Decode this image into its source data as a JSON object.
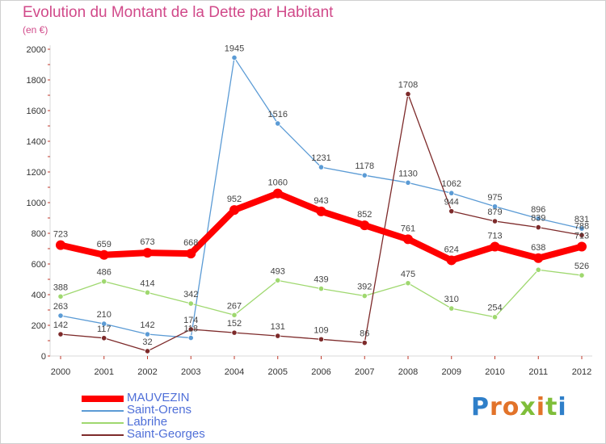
{
  "header": {
    "title": "Evolution du Montant de la Dette par Habitant",
    "subtitle": "(en €)"
  },
  "logo": {
    "text": "Proxiti",
    "letter_colors": [
      "#2f7fc9",
      "#e2732a",
      "#e2732a",
      "#7fbe3a",
      "#e2732a",
      "#7fbe3a",
      "#2f7fc9"
    ]
  },
  "chart_data": {
    "type": "line",
    "title": "Evolution du Montant de la Dette par Habitant",
    "subtitle": "(en €)",
    "xlabel": "",
    "ylabel": "",
    "x": [
      "2000",
      "2001",
      "2002",
      "2003",
      "2004",
      "2005",
      "2006",
      "2007",
      "2008",
      "2009",
      "2010",
      "2011",
      "2012"
    ],
    "ylim": [
      0,
      2000
    ],
    "yticks": [
      0,
      200,
      400,
      600,
      800,
      1000,
      1200,
      1400,
      1600,
      1800,
      2000
    ],
    "grid": false,
    "legend": "bottom-left",
    "series": [
      {
        "name": "MAUVEZIN",
        "color": "#ff0000",
        "emphasis": true,
        "values": [
          723,
          659,
          673,
          668,
          952,
          1060,
          943,
          852,
          761,
          624,
          713,
          638,
          713
        ]
      },
      {
        "name": "Saint-Orens",
        "color": "#5b9bd5",
        "emphasis": false,
        "values": [
          263,
          210,
          142,
          118,
          1945,
          1516,
          1231,
          1178,
          1130,
          1062,
          975,
          896,
          831
        ]
      },
      {
        "name": "Labrihe",
        "color": "#9fd86f",
        "emphasis": false,
        "values": [
          388,
          486,
          414,
          342,
          267,
          493,
          439,
          392,
          475,
          310,
          254,
          562,
          526
        ]
      },
      {
        "name": "Saint-Georges",
        "color": "#7d2a2a",
        "emphasis": false,
        "values": [
          142,
          117,
          32,
          174,
          152,
          131,
          109,
          86,
          1708,
          944,
          879,
          839,
          788
        ]
      }
    ],
    "data_labels": [
      {
        "series": 0,
        "labels": [
          "723",
          "659",
          "673",
          "668",
          "952",
          "1060",
          "943",
          "852",
          "761",
          "624",
          "713",
          "638",
          "713"
        ]
      },
      {
        "series": 1,
        "labels": [
          "263",
          "210",
          "142",
          "118",
          "1945",
          "1516",
          "1231",
          "1178",
          "1130",
          "1062",
          "975",
          "896",
          "831"
        ]
      },
      {
        "series": 2,
        "labels": [
          "388",
          "486",
          "414",
          "342",
          "267",
          "493",
          "439",
          "392",
          "475",
          "310",
          "254",
          "",
          "526"
        ]
      },
      {
        "series": 3,
        "labels": [
          "142",
          "117",
          "32",
          "174",
          "152",
          "131",
          "109",
          "86",
          "1708",
          "944",
          "879",
          "839",
          "788"
        ]
      }
    ]
  }
}
